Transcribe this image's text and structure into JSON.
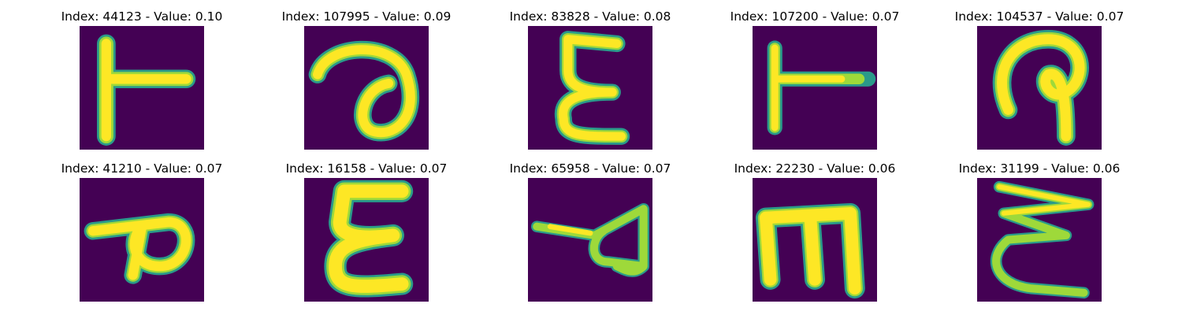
{
  "colors": {
    "background": "#440154",
    "stroke_core": "#fde725",
    "stroke_mid": "#9ed93a",
    "stroke_edge": "#2a9a8a"
  },
  "panels": [
    {
      "title": "Index: 44123 - Value: 0.10",
      "glyph": "T-rotated-left"
    },
    {
      "title": "Index: 107995 - Value: 0.09",
      "glyph": "loop-curl"
    },
    {
      "title": "Index: 83828 - Value: 0.08",
      "glyph": "epsilon"
    },
    {
      "title": "Index: 107200 - Value: 0.07",
      "glyph": "T-rotated-left-thin"
    },
    {
      "title": "Index: 104537 - Value: 0.07",
      "glyph": "hook-loop"
    },
    {
      "title": "Index: 41210 - Value: 0.07",
      "glyph": "p-rotated"
    },
    {
      "title": "Index: 16158 - Value: 0.07",
      "glyph": "epsilon-bold"
    },
    {
      "title": "Index: 65958 - Value: 0.07",
      "glyph": "triangle-loop"
    },
    {
      "title": "Index: 22230 - Value: 0.06",
      "glyph": "m-shape"
    },
    {
      "title": "Index: 31199 - Value: 0.06",
      "glyph": "sigma-zigzag"
    }
  ]
}
